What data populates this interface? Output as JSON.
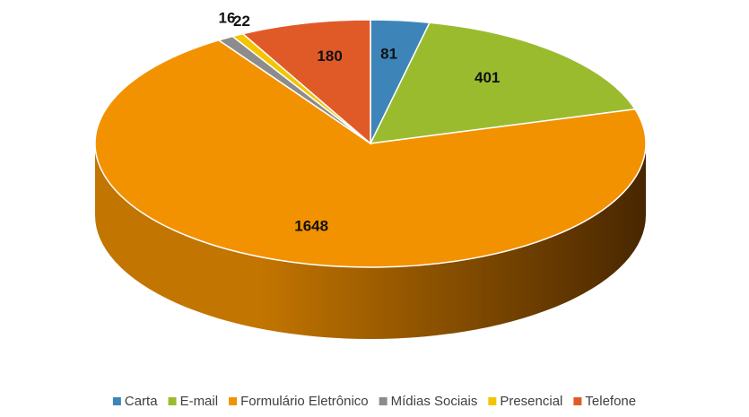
{
  "chart_data": {
    "type": "pie",
    "categories": [
      "Carta",
      "E-mail",
      "Formulário Eletrônico",
      "Mídias Sociais",
      "Presencial",
      "Telefone"
    ],
    "values": [
      81,
      401,
      1648,
      22,
      16,
      180
    ],
    "colors": [
      "#3d85b8",
      "#9bbb2f",
      "#f39200",
      "#8c8c8c",
      "#f5c400",
      "#e05a28"
    ],
    "legend": "bottom"
  }
}
